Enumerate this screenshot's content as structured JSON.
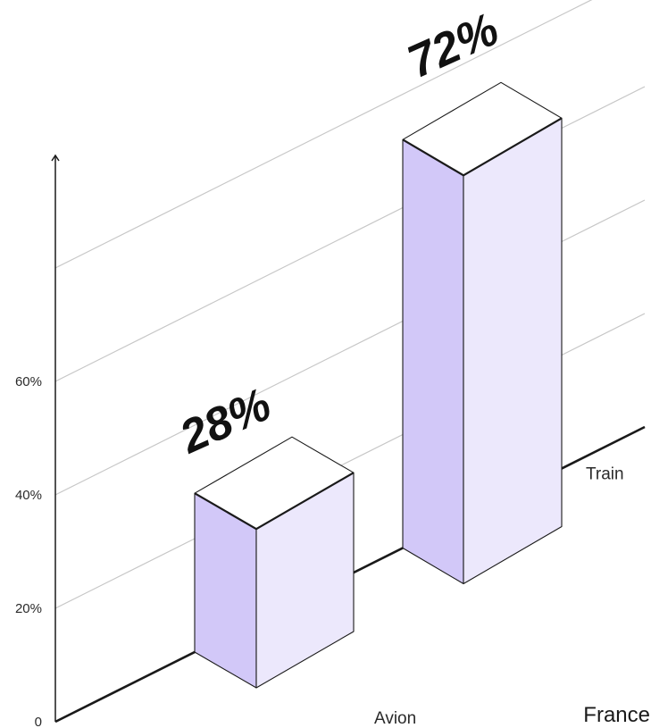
{
  "chart_data": {
    "type": "bar",
    "group": "France",
    "categories": [
      "Avion",
      "Train"
    ],
    "values": [
      28,
      72
    ],
    "value_labels": [
      "28%",
      "72%"
    ],
    "y_ticks": [
      {
        "value": 0,
        "label": "0"
      },
      {
        "value": 20,
        "label": "20%"
      },
      {
        "value": 40,
        "label": "40%"
      },
      {
        "value": 60,
        "label": "60%"
      }
    ],
    "ylim": [
      0,
      80
    ],
    "grid": true,
    "title": "",
    "xlabel": "",
    "ylabel": "",
    "colors": {
      "front": "#ece8fc",
      "side": "#d2c8f8",
      "top": "#ffffff",
      "outline": "#1a1a1a",
      "grid": "#c6c6c6",
      "axis": "#1a1a1a"
    }
  }
}
